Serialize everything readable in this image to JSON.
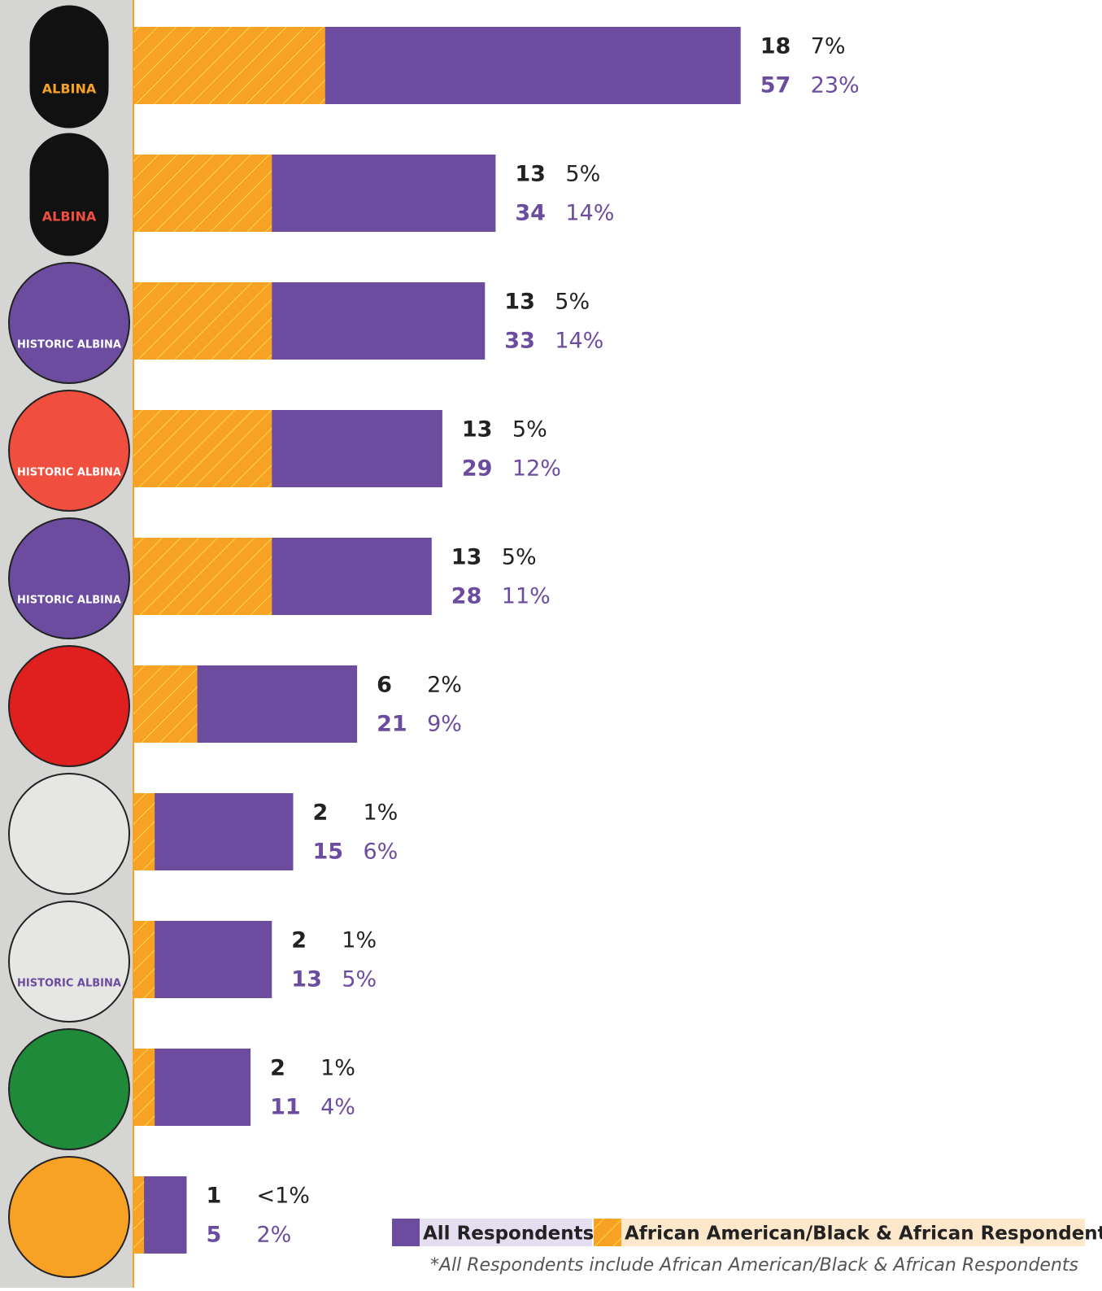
{
  "chart_data": {
    "type": "bar",
    "orientation": "horizontal",
    "categories": [
      "ALBINA",
      "ALBINA",
      "HISTORIC ALBINA",
      "HISTORIC ALBINA",
      "HISTORIC ALBINA",
      null,
      null,
      "HISTORIC ALBINA",
      null,
      null
    ],
    "series": [
      {
        "name": "All Respondents*",
        "color": "#6b4c9f",
        "values": [
          57,
          34,
          33,
          29,
          28,
          21,
          15,
          13,
          11,
          5
        ],
        "percent_labels": [
          "23%",
          "14%",
          "14%",
          "12%",
          "11%",
          "9%",
          "6%",
          "5%",
          "4%",
          "2%"
        ]
      },
      {
        "name": "African American/Black & African Respondents",
        "color": "#f7a125",
        "values": [
          18,
          13,
          13,
          13,
          13,
          6,
          2,
          2,
          2,
          1
        ],
        "percent_labels": [
          "7%",
          "5%",
          "5%",
          "5%",
          "5%",
          "2%",
          "1%",
          "1%",
          "1%",
          "<1%"
        ]
      }
    ],
    "xlim": [
      0,
      90
    ],
    "footnote": "*All Respondents include African American/Black & African Respondents"
  }
}
